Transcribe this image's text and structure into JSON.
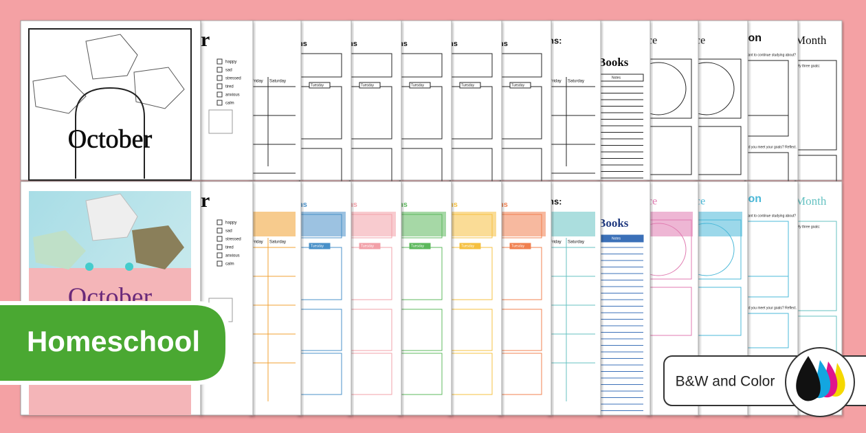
{
  "cover_bw": {
    "title": "October"
  },
  "cover_color": {
    "title": "October"
  },
  "badge": "Homeschool",
  "format_label": "B&W and Color",
  "header_fragments": [
    "r",
    "ns",
    "ns:",
    "ce",
    "ion"
  ],
  "mood_list": [
    "happy",
    "sad",
    "stressed",
    "tired",
    "anxious",
    "calm"
  ],
  "calendar_days": [
    "Friday",
    "Saturday"
  ],
  "planner_day": "Tuesday",
  "books": {
    "title": "Books",
    "notes": "Notes"
  },
  "goals": {
    "title": "Month",
    "goals": "My three goals:",
    "reflect": "Did you meet your goals? Reflect.",
    "continue": "Want to continue studying about?"
  }
}
